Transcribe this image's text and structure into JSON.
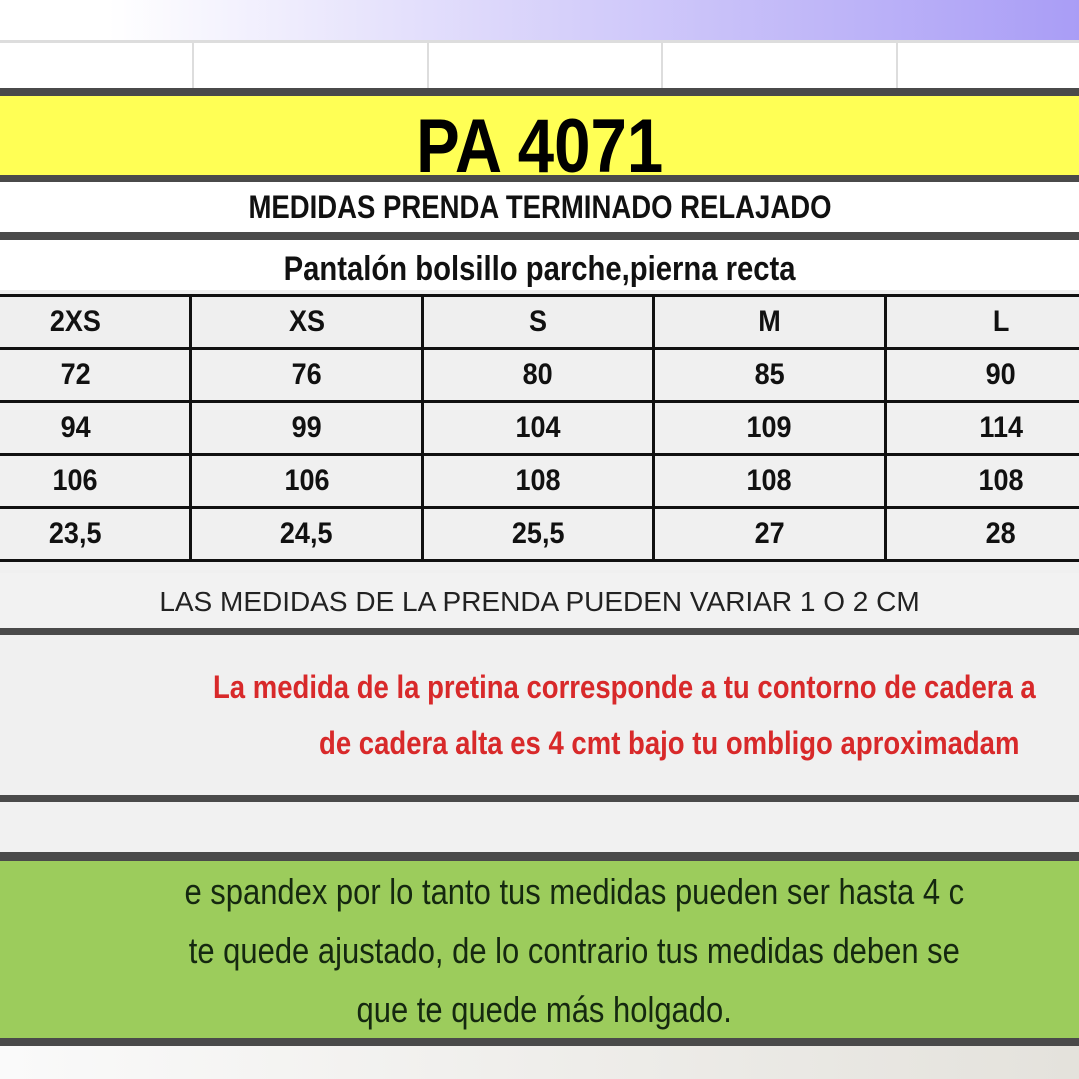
{
  "title": "PA 4071",
  "subtitle": "MEDIDAS PRENDA TERMINADO RELAJADO",
  "description": "Pantalón bolsillo parche,pierna recta",
  "table": {
    "headers": [
      "2XS",
      "XS",
      "S",
      "M",
      "L"
    ],
    "rows": [
      [
        "72",
        "76",
        "80",
        "85",
        "90"
      ],
      [
        "94",
        "99",
        "104",
        "109",
        "114"
      ],
      [
        "106",
        "106",
        "108",
        "108",
        "108"
      ],
      [
        "23,5",
        "24,5",
        "25,5",
        "27",
        "28"
      ]
    ]
  },
  "variation_note": "LAS MEDIDAS DE LA PRENDA PUEDEN VARIAR 1 O 2 CM",
  "red_note": {
    "line1": "La medida de la pretina corresponde a tu contorno de cadera a",
    "line2": "de cadera alta es 4 cmt bajo tu ombligo aproximadam"
  },
  "green_note": {
    "line1": "e spandex por lo tanto tus medidas pueden ser hasta 4 c",
    "line2": "te quede ajustado, de lo contrario tus medidas deben se",
    "line3": "que te quede más holgado."
  },
  "colors": {
    "title_bg": "#ffff55",
    "red_text": "#d8292a",
    "green_bg": "#9ccc5c"
  }
}
